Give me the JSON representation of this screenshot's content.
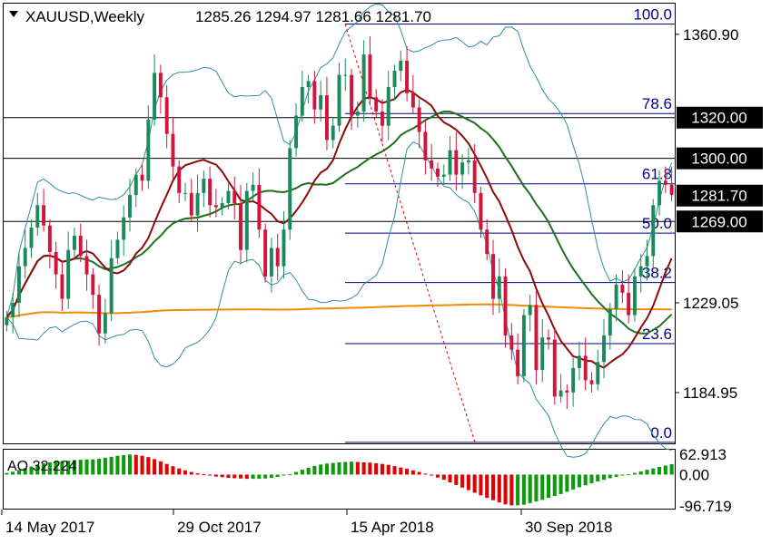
{
  "header": {
    "symbol": "XAUUSD,Weekly",
    "ohlc": "1285.26 1294.97 1281.66 1281.70"
  },
  "colors": {
    "bull": "#1a8a5a",
    "bear": "#d2143c",
    "bollinger": "#2e8fa0",
    "ma_fast": "#8b0a0a",
    "ma_mid": "#1e6e1e",
    "ma_slow": "#f08c00",
    "fib": "#000080",
    "label_bg": "#000000",
    "ao_up": "#0a9a0a",
    "ao_down": "#e00000"
  },
  "chart_data": {
    "type": "candlestick",
    "symbol": "XAUUSD",
    "timeframe": "Weekly",
    "ohlc_last": {
      "open": 1285.26,
      "high": 1294.97,
      "low": 1281.66,
      "close": 1281.7
    },
    "ylim": [
      1160,
      1376
    ],
    "price_axis_ticks": [
      1360.9,
      1229.05,
      1184.95
    ],
    "price_labels": [
      {
        "value": 1320.0,
        "text": "1320.00"
      },
      {
        "value": 1300.0,
        "text": "1300.00"
      },
      {
        "value": 1281.7,
        "text": "1281.70"
      },
      {
        "value": 1269.0,
        "text": "1269.00"
      }
    ],
    "horizontal_lines": [
      1320.0,
      1300.0,
      1269.0
    ],
    "x_labels": [
      "14 May 2017",
      "29 Oct 2017",
      "15 Apr 2018",
      "30 Sep 2018"
    ],
    "fibonacci": {
      "high": 1366.0,
      "low": 1160.5,
      "levels": [
        {
          "ratio": 100.0,
          "label": "100.0"
        },
        {
          "ratio": 78.6,
          "label": "78.6"
        },
        {
          "ratio": 61.8,
          "label": "61.8"
        },
        {
          "ratio": 50.0,
          "label": "50.0"
        },
        {
          "ratio": 38.2,
          "label": "38.2"
        },
        {
          "ratio": 23.6,
          "label": "23.6"
        },
        {
          "ratio": 0.0,
          "label": "0.0"
        }
      ]
    },
    "closes": [
      1222,
      1229,
      1247,
      1256,
      1266,
      1277,
      1267,
      1254,
      1243,
      1231,
      1255,
      1262,
      1252,
      1243,
      1233,
      1214,
      1224,
      1251,
      1260,
      1271,
      1282,
      1292,
      1289,
      1319,
      1342,
      1330,
      1312,
      1296,
      1283,
      1283,
      1272,
      1283,
      1290,
      1277,
      1276,
      1278,
      1284,
      1278,
      1255,
      1284,
      1287,
      1265,
      1242,
      1256,
      1247,
      1265,
      1305,
      1321,
      1335,
      1338,
      1324,
      1331,
      1309,
      1316,
      1341,
      1341,
      1321,
      1323,
      1351,
      1330,
      1323,
      1316,
      1335,
      1343,
      1348,
      1332,
      1325,
      1313,
      1299,
      1295,
      1291,
      1292,
      1304,
      1292,
      1298,
      1299,
      1283,
      1265,
      1253,
      1231,
      1242,
      1213,
      1206,
      1193,
      1223,
      1228,
      1196,
      1212,
      1211,
      1183,
      1186,
      1185,
      1197,
      1203,
      1191,
      1189,
      1200,
      1213,
      1226,
      1238,
      1234,
      1223,
      1242,
      1247,
      1252,
      1277,
      1289,
      1287,
      1282
    ],
    "indicator": {
      "name": "AO",
      "value_text": "AO 32.224",
      "value": 32.224,
      "scale_labels": [
        "62.913",
        "0.00",
        "-96.719"
      ],
      "scale_values": [
        62.913,
        0.0,
        -96.719
      ],
      "values": [
        5,
        9,
        14,
        20,
        25,
        30,
        35,
        38,
        40,
        42,
        43,
        45,
        46,
        47,
        47,
        49,
        52,
        55,
        58,
        60,
        62,
        61,
        58,
        54,
        48,
        41,
        33,
        26,
        19,
        13,
        8,
        4,
        1,
        -3,
        -6,
        -8,
        -10,
        -11,
        -12,
        -13,
        -13,
        -13,
        -12,
        -10,
        -7,
        -3,
        1,
        8,
        15,
        21,
        27,
        31,
        34,
        36,
        38,
        39,
        40,
        39,
        38,
        37,
        35,
        33,
        30,
        26,
        22,
        18,
        13,
        8,
        3,
        -3,
        -9,
        -16,
        -24,
        -32,
        -40,
        -48,
        -56,
        -64,
        -72,
        -79,
        -86,
        -92,
        -95,
        -95,
        -93,
        -88,
        -83,
        -78,
        -72,
        -66,
        -60,
        -53,
        -46,
        -39,
        -33,
        -27,
        -21,
        -16,
        -11,
        -7,
        -3,
        1,
        5,
        10,
        15,
        19,
        24,
        28,
        32
      ]
    }
  }
}
